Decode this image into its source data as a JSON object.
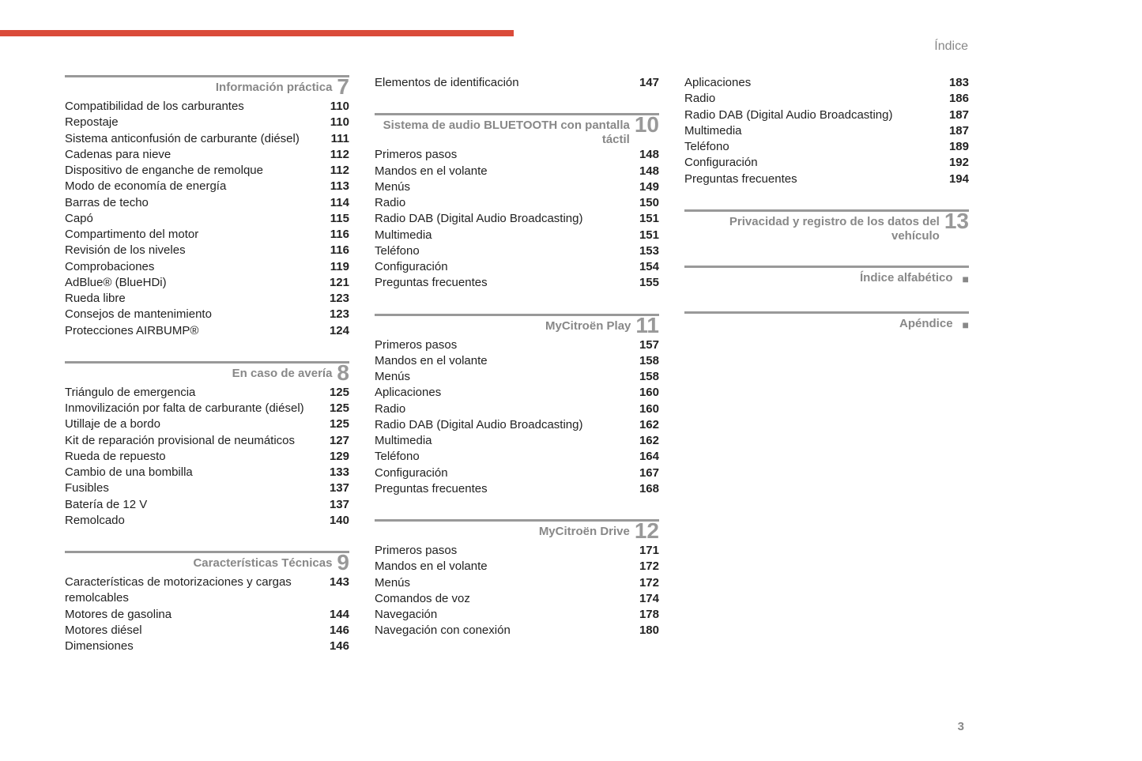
{
  "header": {
    "label": "Índice"
  },
  "pageNumber": "3",
  "columns": [
    {
      "sections": [
        {
          "title": "Información práctica",
          "number": "7",
          "entries": [
            {
              "label": "Compatibilidad de los carburantes",
              "page": "110"
            },
            {
              "label": "Repostaje",
              "page": "110"
            },
            {
              "label": "Sistema anticonfusión de carburante (diésel)",
              "page": "111"
            },
            {
              "label": "Cadenas para nieve",
              "page": "112"
            },
            {
              "label": "Dispositivo de enganche de remolque",
              "page": "112"
            },
            {
              "label": "Modo de economía de energía",
              "page": "113"
            },
            {
              "label": "Barras de techo",
              "page": "114"
            },
            {
              "label": "Capó",
              "page": "115"
            },
            {
              "label": "Compartimento del motor",
              "page": "116"
            },
            {
              "label": "Revisión de los niveles",
              "page": "116"
            },
            {
              "label": "Comprobaciones",
              "page": "119"
            },
            {
              "label": "AdBlue® (BlueHDi)",
              "page": "121"
            },
            {
              "label": "Rueda libre",
              "page": "123"
            },
            {
              "label": "Consejos de mantenimiento",
              "page": "123"
            },
            {
              "label": "Protecciones AIRBUMP®",
              "page": "124"
            }
          ]
        },
        {
          "title": "En caso de avería",
          "number": "8",
          "entries": [
            {
              "label": "Triángulo de emergencia",
              "page": "125"
            },
            {
              "label": "Inmovilización por falta de carburante (diésel)",
              "page": "125"
            },
            {
              "label": "Utillaje de a bordo",
              "page": "125"
            },
            {
              "label": "Kit de reparación provisional de neumáticos",
              "page": "127"
            },
            {
              "label": "Rueda de repuesto",
              "page": "129"
            },
            {
              "label": "Cambio de una bombilla",
              "page": "133"
            },
            {
              "label": "Fusibles",
              "page": "137"
            },
            {
              "label": "Batería de 12 V",
              "page": "137"
            },
            {
              "label": "Remolcado",
              "page": "140"
            }
          ]
        },
        {
          "title": "Características Técnicas",
          "number": "9",
          "entries": [
            {
              "label": "Características de motorizaciones y cargas remolcables",
              "page": "143"
            },
            {
              "label": "Motores de gasolina",
              "page": "144"
            },
            {
              "label": "Motores diésel",
              "page": "146"
            },
            {
              "label": "Dimensiones",
              "page": "146"
            }
          ]
        }
      ]
    },
    {
      "sections": [
        {
          "title": "",
          "number": "",
          "noHeader": true,
          "entries": [
            {
              "label": "Elementos de identificación",
              "page": "147"
            }
          ]
        },
        {
          "title": "Sistema de audio BLUETOOTH con pantalla táctil",
          "number": "10",
          "entries": [
            {
              "label": "Primeros pasos",
              "page": "148"
            },
            {
              "label": "Mandos en el volante",
              "page": "148"
            },
            {
              "label": "Menús",
              "page": "149"
            },
            {
              "label": "Radio",
              "page": "150"
            },
            {
              "label": "Radio DAB (Digital Audio Broadcasting)",
              "page": "151"
            },
            {
              "label": "Multimedia",
              "page": "151"
            },
            {
              "label": "Teléfono",
              "page": "153"
            },
            {
              "label": "Configuración",
              "page": "154"
            },
            {
              "label": "Preguntas frecuentes",
              "page": "155"
            }
          ]
        },
        {
          "title": "MyCitroën Play",
          "number": "11",
          "entries": [
            {
              "label": "Primeros pasos",
              "page": "157"
            },
            {
              "label": "Mandos en el volante",
              "page": "158"
            },
            {
              "label": "Menús",
              "page": "158"
            },
            {
              "label": "Aplicaciones",
              "page": "160"
            },
            {
              "label": "Radio",
              "page": "160"
            },
            {
              "label": "Radio DAB (Digital Audio Broadcasting)",
              "page": "162"
            },
            {
              "label": "Multimedia",
              "page": "162"
            },
            {
              "label": "Teléfono",
              "page": "164"
            },
            {
              "label": "Configuración",
              "page": "167"
            },
            {
              "label": "Preguntas frecuentes",
              "page": "168"
            }
          ]
        },
        {
          "title": "MyCitroën Drive",
          "number": "12",
          "entries": [
            {
              "label": "Primeros pasos",
              "page": "171"
            },
            {
              "label": "Mandos en el volante",
              "page": "172"
            },
            {
              "label": "Menús",
              "page": "172"
            },
            {
              "label": "Comandos de voz",
              "page": "174"
            },
            {
              "label": "Navegación",
              "page": "178"
            },
            {
              "label": "Navegación con conexión",
              "page": "180"
            }
          ]
        }
      ]
    },
    {
      "sections": [
        {
          "title": "",
          "number": "",
          "noHeader": true,
          "entries": [
            {
              "label": "Aplicaciones",
              "page": "183"
            },
            {
              "label": "Radio",
              "page": "186"
            },
            {
              "label": "Radio DAB (Digital Audio Broadcasting)",
              "page": "187"
            },
            {
              "label": "Multimedia",
              "page": "187"
            },
            {
              "label": "Teléfono",
              "page": "189"
            },
            {
              "label": "Configuración",
              "page": "192"
            },
            {
              "label": "Preguntas frecuentes",
              "page": "194"
            }
          ]
        },
        {
          "title": "Privacidad y registro de los datos del vehículo",
          "number": "13",
          "entries": []
        },
        {
          "title": "Índice alfabético",
          "bullet": true,
          "entries": []
        },
        {
          "title": "Apéndice",
          "bullet": true,
          "entries": []
        }
      ]
    }
  ]
}
